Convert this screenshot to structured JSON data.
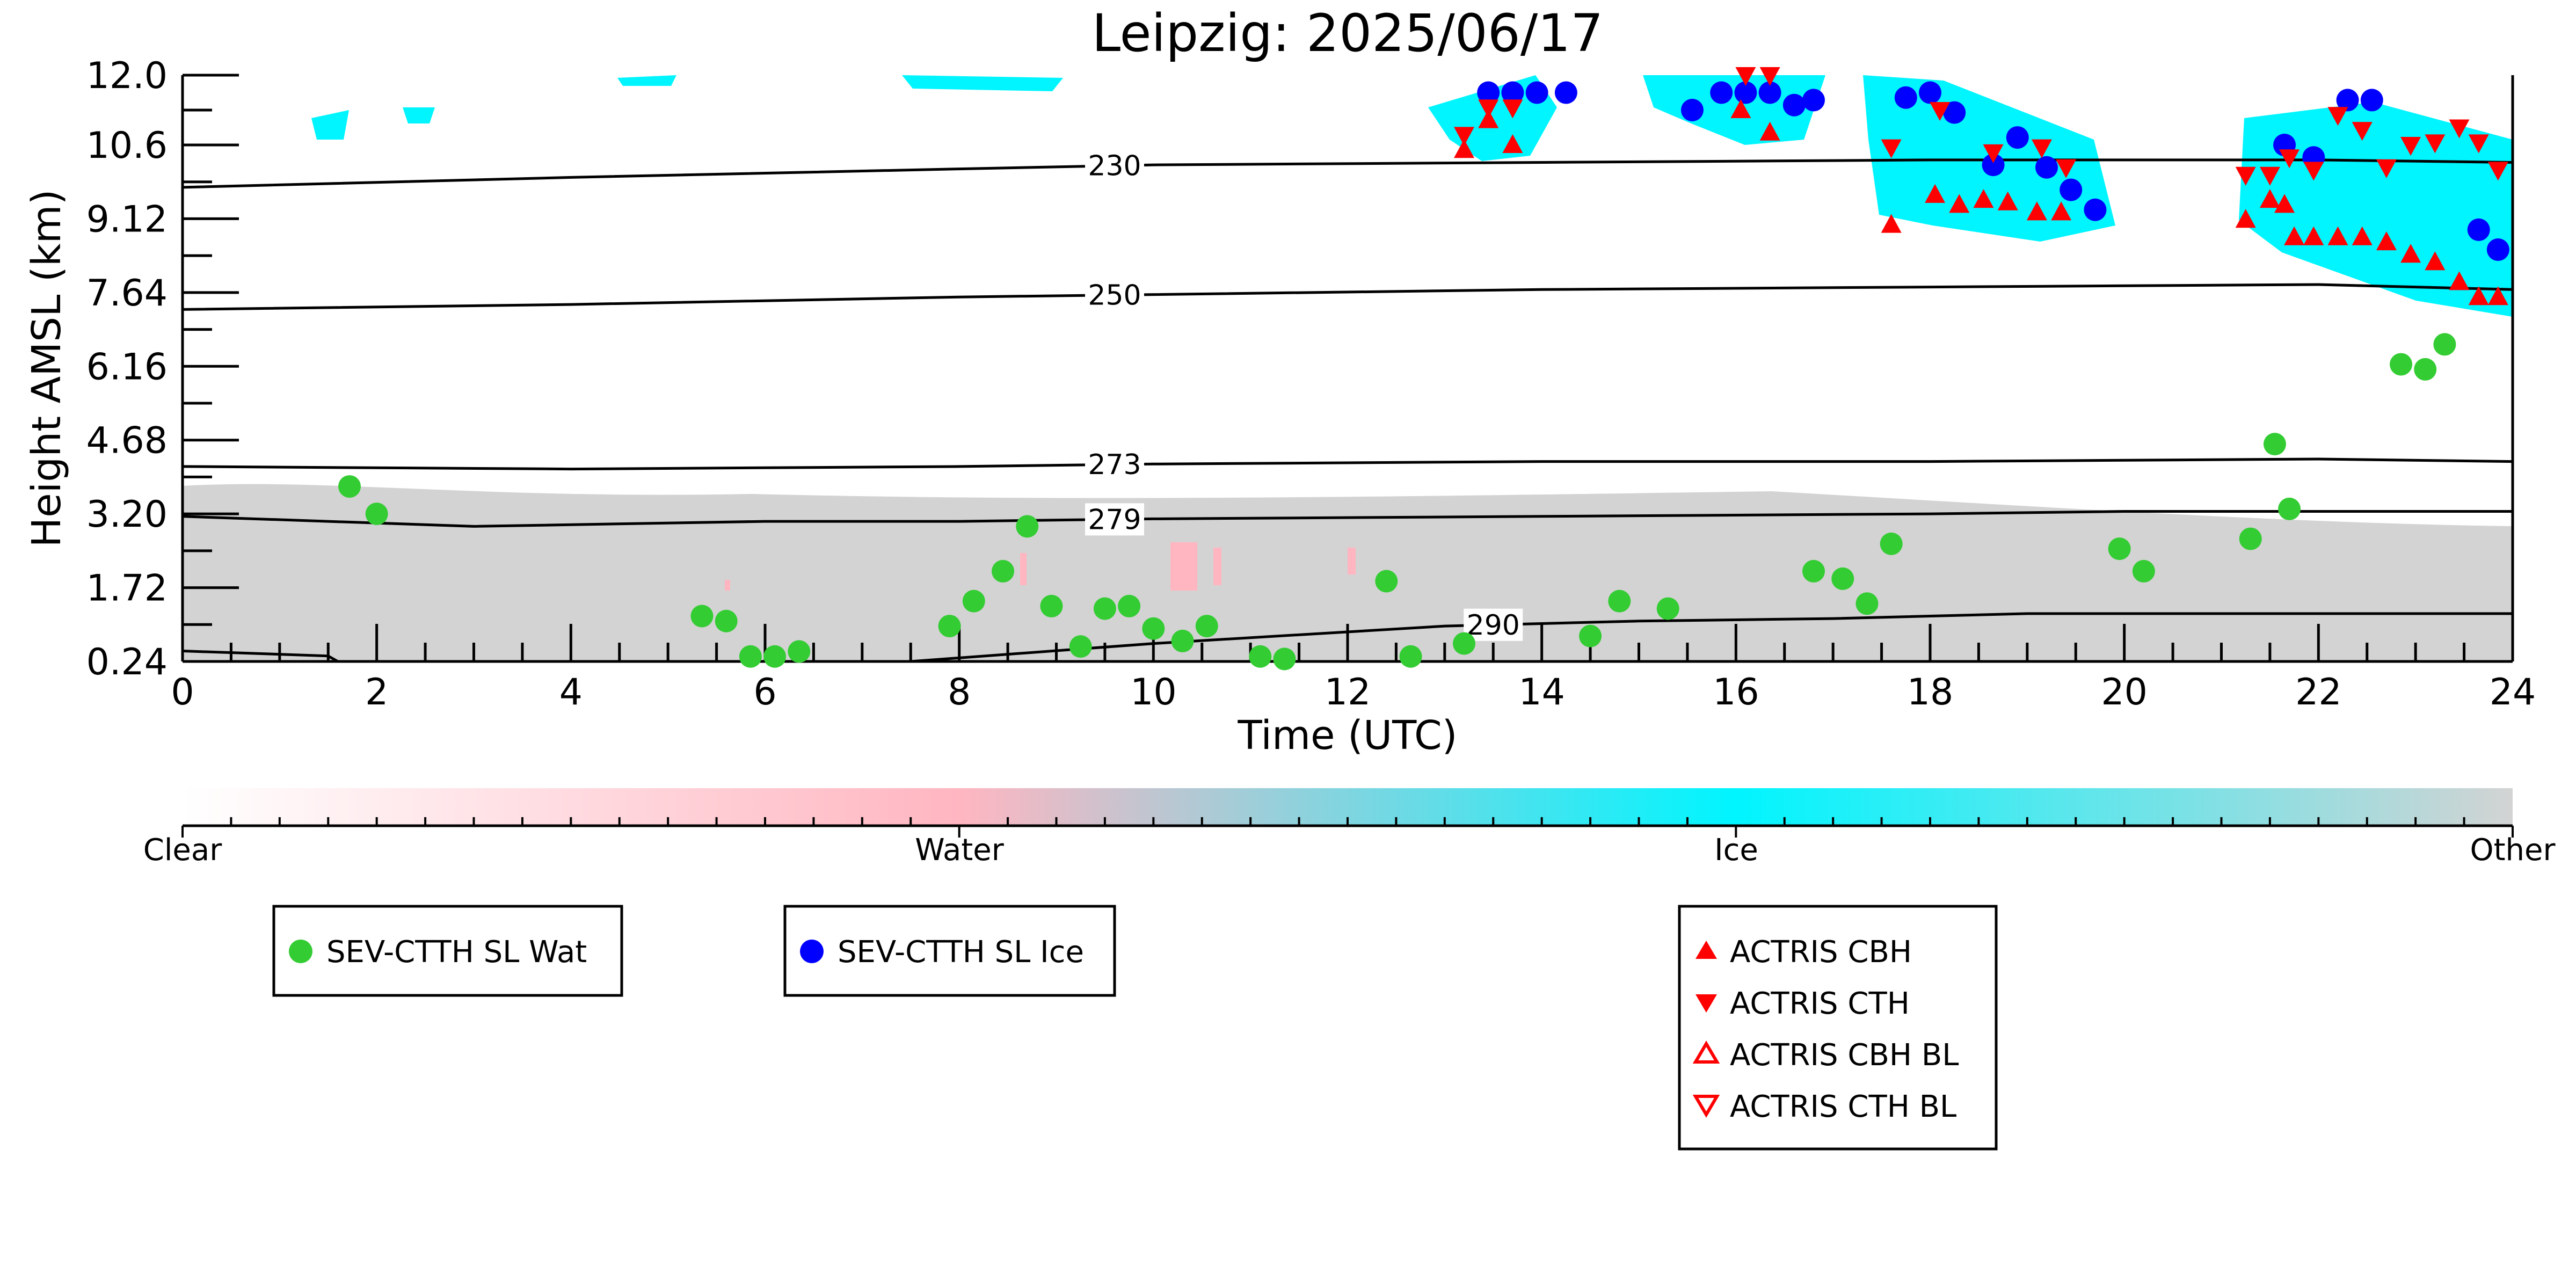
{
  "chart_data": {
    "type": "scatter",
    "title": "Leipzig: 2025/06/17",
    "xlabel": "Time (UTC)",
    "ylabel": "Height AMSL (km)",
    "xlim": [
      0,
      24
    ],
    "ylim": [
      0.24,
      12.0
    ],
    "xticks": [
      "0",
      "2",
      "4",
      "6",
      "8",
      "10",
      "12",
      "14",
      "16",
      "18",
      "20",
      "22",
      "24"
    ],
    "yticks": [
      "0.24",
      "1.72",
      "3.20",
      "4.68",
      "6.16",
      "7.64",
      "9.12",
      "10.6",
      "12.0"
    ],
    "background_field": {
      "description_colors": {
        "clear": "#ffffff",
        "water": "#ffb6c1",
        "ice": "#00f5ff",
        "other": "#d3d3d3"
      },
      "colorbar_labels": [
        "Clear",
        "Water",
        "Ice",
        "Other"
      ]
    },
    "temperature_contours": [
      {
        "label": "230",
        "x": [
          0,
          4,
          8,
          10,
          14,
          18,
          22,
          24
        ],
        "y": [
          9.75,
          9.95,
          10.12,
          10.2,
          10.25,
          10.3,
          10.3,
          10.25
        ],
        "label_x": 9.6
      },
      {
        "label": "250",
        "x": [
          0,
          4,
          8,
          10,
          14,
          18,
          22,
          24
        ],
        "y": [
          7.3,
          7.4,
          7.55,
          7.6,
          7.7,
          7.75,
          7.8,
          7.7
        ],
        "label_x": 9.6
      },
      {
        "label": "273",
        "x": [
          0,
          4,
          8,
          10,
          14,
          18,
          22,
          24
        ],
        "y": [
          4.15,
          4.1,
          4.15,
          4.2,
          4.25,
          4.25,
          4.3,
          4.25
        ],
        "label_x": 9.6
      },
      {
        "label": "279",
        "x": [
          0,
          3,
          6,
          8,
          10,
          14,
          18,
          20,
          24
        ],
        "y": [
          3.15,
          2.95,
          3.05,
          3.05,
          3.1,
          3.15,
          3.2,
          3.25,
          3.25
        ],
        "label_x": 9.6
      },
      {
        "label": "290",
        "x": [
          0,
          1.5,
          1.6,
          7.5,
          10,
          13,
          15,
          17,
          19,
          24
        ],
        "y": [
          0.45,
          0.35,
          0.24,
          0.24,
          0.6,
          0.95,
          1.05,
          1.1,
          1.2,
          1.2
        ],
        "label_x": 13.5
      }
    ],
    "series": [
      {
        "name": "SEV-CTTH SL Wat",
        "marker": "circle",
        "color": "#33cc33",
        "x": [
          1.72,
          2.0,
          5.35,
          5.6,
          5.85,
          6.1,
          6.35,
          7.9,
          8.15,
          8.45,
          8.7,
          8.95,
          9.25,
          9.5,
          9.75,
          10.0,
          10.3,
          10.55,
          11.1,
          11.35,
          12.4,
          12.65,
          13.2,
          14.5,
          14.8,
          15.3,
          16.8,
          17.1,
          17.35,
          17.6,
          19.95,
          20.2,
          21.3,
          21.55,
          21.7,
          22.85,
          23.1,
          23.3
        ],
        "y": [
          3.75,
          3.2,
          1.15,
          1.05,
          0.34,
          0.34,
          0.44,
          0.95,
          1.45,
          2.05,
          2.95,
          1.35,
          0.54,
          1.3,
          1.35,
          0.9,
          0.65,
          0.95,
          0.34,
          0.29,
          1.85,
          0.34,
          0.6,
          0.75,
          1.45,
          1.3,
          2.05,
          1.9,
          1.4,
          2.6,
          2.5,
          2.05,
          2.7,
          4.6,
          3.3,
          6.2,
          6.1,
          6.6
        ]
      },
      {
        "name": "SEV-CTTH SL Ice",
        "marker": "circle",
        "color": "#0000ff",
        "x": [
          13.45,
          13.7,
          13.95,
          14.25,
          15.55,
          15.85,
          16.1,
          16.35,
          16.6,
          16.8,
          17.75,
          18.0,
          18.25,
          18.65,
          18.9,
          19.2,
          19.45,
          19.7,
          21.65,
          21.95,
          22.3,
          22.55,
          23.65,
          23.85
        ],
        "y": [
          11.65,
          11.65,
          11.65,
          11.65,
          11.3,
          11.65,
          11.65,
          11.65,
          11.4,
          11.5,
          11.55,
          11.65,
          11.25,
          10.2,
          10.75,
          10.15,
          9.7,
          9.3,
          10.6,
          10.35,
          11.5,
          11.5,
          8.9,
          8.5
        ]
      },
      {
        "name": "ACTRIS CBH",
        "marker": "triangle-up",
        "color": "#ff0000",
        "x": [
          13.2,
          13.45,
          13.7,
          16.05,
          16.35,
          17.6,
          18.05,
          18.3,
          18.55,
          18.8,
          19.1,
          19.35,
          21.25,
          21.5,
          21.65,
          21.75,
          21.95,
          22.2,
          22.45,
          22.7,
          22.95,
          23.2,
          23.45,
          23.65,
          23.85
        ],
        "y": [
          10.5,
          11.1,
          10.6,
          11.3,
          10.85,
          9.0,
          9.6,
          9.4,
          9.5,
          9.45,
          9.25,
          9.25,
          9.1,
          9.5,
          9.4,
          8.75,
          8.75,
          8.75,
          8.75,
          8.65,
          8.4,
          8.25,
          7.85,
          7.55,
          7.55
        ]
      },
      {
        "name": "ACTRIS CTH",
        "marker": "triangle-down",
        "color": "#ff0000",
        "x": [
          13.2,
          13.45,
          13.7,
          16.1,
          16.35,
          17.6,
          18.1,
          18.65,
          19.15,
          19.4,
          21.25,
          21.5,
          21.7,
          21.95,
          22.2,
          22.45,
          22.7,
          22.95,
          23.2,
          23.45,
          23.65,
          23.85
        ],
        "y": [
          10.8,
          11.35,
          11.35,
          12.0,
          12.0,
          10.55,
          11.3,
          10.45,
          10.55,
          10.15,
          10.0,
          10.0,
          10.35,
          10.1,
          11.2,
          10.9,
          10.15,
          10.6,
          10.65,
          10.95,
          10.65,
          10.1
        ]
      },
      {
        "name": "ACTRIS CBH BL",
        "marker": "triangle-up-open",
        "color": "#ff0000",
        "x": [],
        "y": []
      },
      {
        "name": "ACTRIS CTH BL",
        "marker": "triangle-down-open",
        "color": "#ff0000",
        "x": [],
        "y": []
      }
    ],
    "legends": [
      {
        "entries": [
          "SEV-CTTH SL Wat"
        ]
      },
      {
        "entries": [
          "SEV-CTTH SL Ice"
        ]
      },
      {
        "entries": [
          "ACTRIS CBH",
          "ACTRIS CTH",
          "ACTRIS CBH BL",
          "ACTRIS CTH BL"
        ]
      }
    ]
  }
}
